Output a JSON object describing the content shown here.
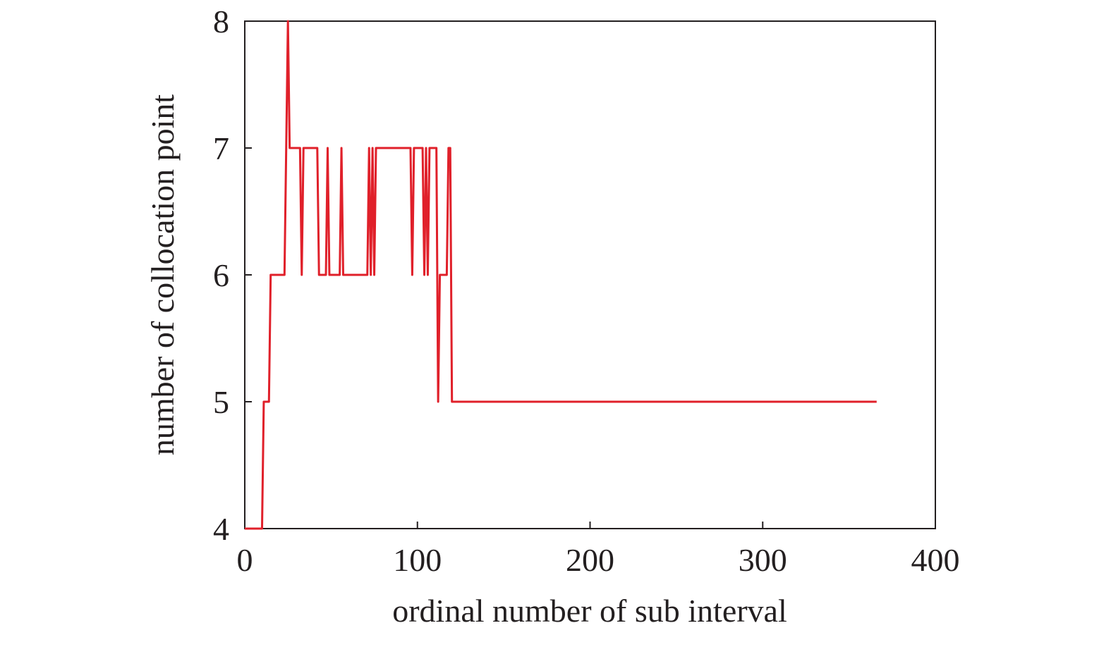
{
  "chart_data": {
    "type": "line",
    "xlabel": "ordinal number of sub interval",
    "ylabel": "number of collocation point",
    "x": [
      0,
      10,
      11,
      14,
      15,
      23,
      25,
      26,
      32,
      33,
      34,
      42,
      43,
      47,
      48,
      49,
      55,
      56,
      57,
      71,
      72,
      73,
      74,
      75,
      76,
      77,
      96,
      97,
      98,
      103,
      104,
      105,
      106,
      107,
      111,
      112,
      113,
      117,
      118,
      119,
      120,
      366
    ],
    "series": [
      {
        "name": "collocation points",
        "color": "#e0202a",
        "values": [
          4,
          4,
          5,
          5,
          6,
          6,
          8,
          7,
          7,
          6,
          7,
          7,
          6,
          6,
          7,
          6,
          6,
          7,
          6,
          6,
          7,
          6,
          7,
          6,
          7,
          7,
          7,
          6,
          7,
          7,
          6,
          7,
          6,
          7,
          7,
          5,
          6,
          6,
          7,
          7,
          5,
          5
        ]
      }
    ],
    "xlim": [
      0,
      400
    ],
    "xticks": [
      0,
      100,
      200,
      300,
      400
    ],
    "ylim": [
      4,
      8
    ],
    "yticks": [
      4,
      5,
      6,
      7,
      8
    ],
    "grid": false
  }
}
